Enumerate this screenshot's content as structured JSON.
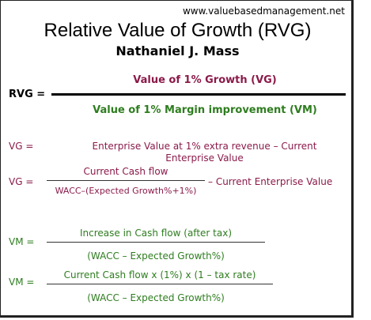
{
  "source_url": "www.valuebasedmanagement.net",
  "title": "Relative Value of Growth (RVG)",
  "author": "Nathaniel J. Mass",
  "rvg": {
    "label": "RVG =",
    "numerator": "Value of 1% Growth (VG)",
    "denominator": "Value of 1% Margin improvement (VM)"
  },
  "vg1": {
    "label": "VG =",
    "line1": "Enterprise Value at 1% extra revenue – Current",
    "line2": "Enterprise Value"
  },
  "vg2": {
    "label": "VG =",
    "numerator": "Current Cash flow",
    "denominator": "WACC–(Expected Growth%+1%)",
    "suffix": "– Current Enterprise Value"
  },
  "vm1": {
    "label": "VM =",
    "numerator": "Increase in Cash flow (after tax)",
    "denominator": "(WACC – Expected Growth%)"
  },
  "vm2": {
    "label": "VM =",
    "numerator": "Current Cash flow  x (1%) x (1 – tax rate)",
    "denominator": "(WACC – Expected Growth%)"
  },
  "colors": {
    "vg": "#8b1a4a",
    "vm": "#2e7d1f",
    "text": "#000000"
  }
}
